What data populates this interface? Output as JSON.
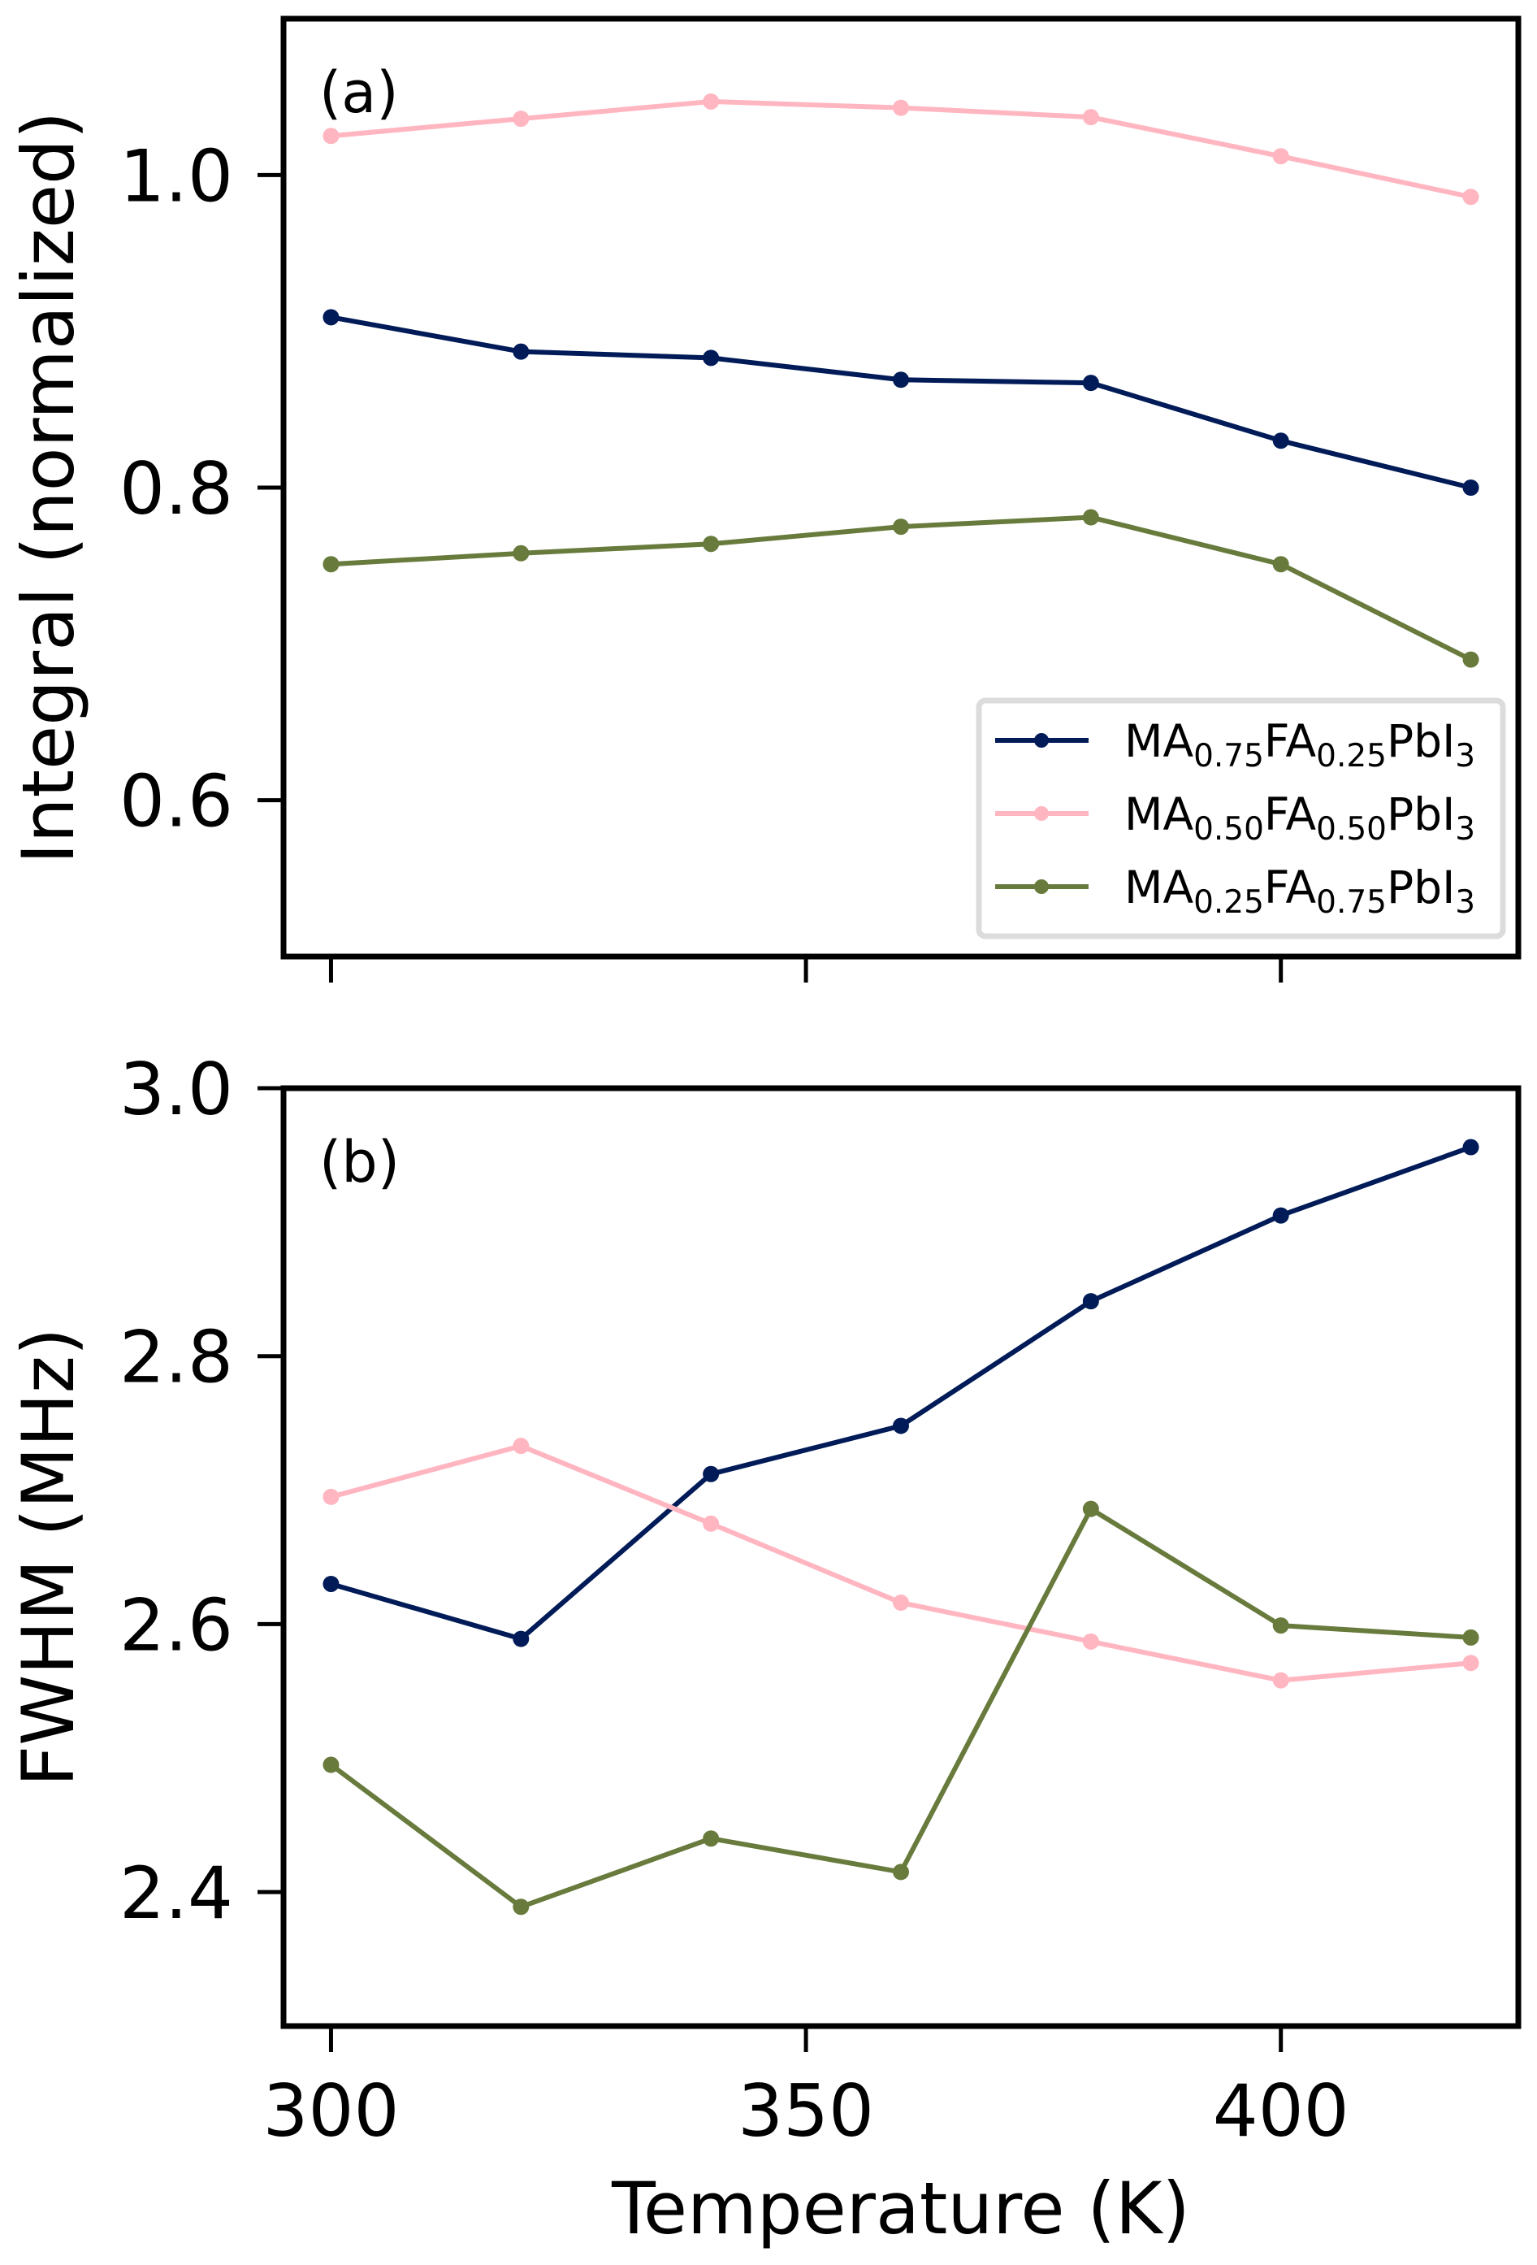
{
  "chart_data": [
    {
      "type": "line",
      "panel_label": "(a)",
      "title": "",
      "xlabel": "",
      "ylabel": "Integral (normalized)",
      "xlim": [
        295,
        425
      ],
      "ylim": [
        0.5,
        1.1
      ],
      "xticks": [
        300,
        350,
        400
      ],
      "xtick_labels_visible": false,
      "yticks": [
        0.6,
        0.8,
        1.0
      ],
      "ytick_labels": [
        "0.6",
        "0.8",
        "1.0"
      ],
      "grid": false,
      "legend_position": "lower-right",
      "x": [
        300,
        320,
        340,
        360,
        380,
        400,
        420
      ],
      "series": [
        {
          "name": "MA0.75FA0.25PbI3",
          "legend": {
            "parts": [
              [
                "MA",
                ""
              ],
              [
                "0.75",
                "sub"
              ],
              [
                "FA",
                ""
              ],
              [
                "0.25",
                "sub"
              ],
              [
                "PbI",
                ""
              ],
              [
                "3",
                "sub"
              ]
            ]
          },
          "color": "#001b58",
          "values": [
            0.909,
            0.887,
            0.883,
            0.869,
            0.867,
            0.83,
            0.8
          ]
        },
        {
          "name": "MA0.50FA0.50PbI3",
          "legend": {
            "parts": [
              [
                "MA",
                ""
              ],
              [
                "0.50",
                "sub"
              ],
              [
                "FA",
                ""
              ],
              [
                "0.50",
                "sub"
              ],
              [
                "PbI",
                ""
              ],
              [
                "3",
                "sub"
              ]
            ]
          },
          "color": "#ffb6c1",
          "values": [
            1.025,
            1.036,
            1.047,
            1.043,
            1.037,
            1.012,
            0.986
          ]
        },
        {
          "name": "MA0.25FA0.75PbI3",
          "legend": {
            "parts": [
              [
                "MA",
                ""
              ],
              [
                "0.25",
                "sub"
              ],
              [
                "FA",
                ""
              ],
              [
                "0.75",
                "sub"
              ],
              [
                "PbI",
                ""
              ],
              [
                "3",
                "sub"
              ]
            ]
          },
          "color": "#687b3d",
          "values": [
            0.751,
            0.758,
            0.764,
            0.775,
            0.781,
            0.751,
            0.69
          ]
        }
      ]
    },
    {
      "type": "line",
      "panel_label": "(b)",
      "title": "",
      "xlabel": "Temperature (K)",
      "ylabel": "FWHM (MHz)",
      "xlim": [
        295,
        425
      ],
      "ylim": [
        2.3,
        3.0
      ],
      "xticks": [
        300,
        350,
        400
      ],
      "xtick_labels": [
        "300",
        "350",
        "400"
      ],
      "yticks": [
        2.4,
        2.6,
        2.8,
        3.0
      ],
      "ytick_labels": [
        "2.4",
        "2.6",
        "2.8",
        "3.0"
      ],
      "grid": false,
      "x": [
        300,
        320,
        340,
        360,
        380,
        400,
        420
      ],
      "series": [
        {
          "name": "MA0.75FA0.25PbI3",
          "color": "#001b58",
          "values": [
            2.63,
            2.589,
            2.712,
            2.748,
            2.841,
            2.905,
            2.956
          ]
        },
        {
          "name": "MA0.50FA0.50PbI3",
          "color": "#ffb6c1",
          "values": [
            2.695,
            2.733,
            2.675,
            2.616,
            2.587,
            2.558,
            2.571
          ]
        },
        {
          "name": "MA0.25FA0.75PbI3",
          "color": "#687b3d",
          "values": [
            2.495,
            2.389,
            2.44,
            2.415,
            2.686,
            2.599,
            2.59
          ]
        }
      ]
    }
  ]
}
